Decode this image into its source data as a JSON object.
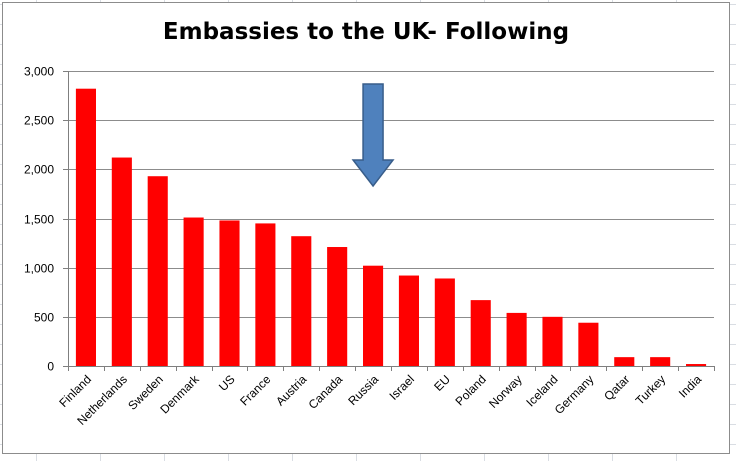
{
  "chart_data": {
    "type": "bar",
    "title": "Embassies to the UK- Following",
    "xlabel": "",
    "ylabel": "",
    "ylim": [
      0,
      3000
    ],
    "yticks": [
      0,
      500,
      1000,
      1500,
      2000,
      2500,
      3000
    ],
    "ytick_labels": [
      "0",
      "500",
      "1,000",
      "1,500",
      "2,000",
      "2,500",
      "3,000"
    ],
    "categories": [
      "Finland",
      "Netherlands",
      "Sweden",
      "Denmark",
      "US",
      "France",
      "Austria",
      "Canada",
      "Russia",
      "Israel",
      "EU",
      "Poland",
      "Norway",
      "Iceland",
      "Germany",
      "Qatar",
      "Turkey",
      "India"
    ],
    "values": [
      2820,
      2120,
      1930,
      1510,
      1480,
      1450,
      1320,
      1210,
      1020,
      920,
      890,
      670,
      540,
      500,
      440,
      90,
      90,
      20
    ],
    "bar_color": "#ff0000",
    "grid": true,
    "annotation": {
      "type": "down-arrow",
      "target_category": "Russia",
      "color": "#4f81bd"
    }
  }
}
